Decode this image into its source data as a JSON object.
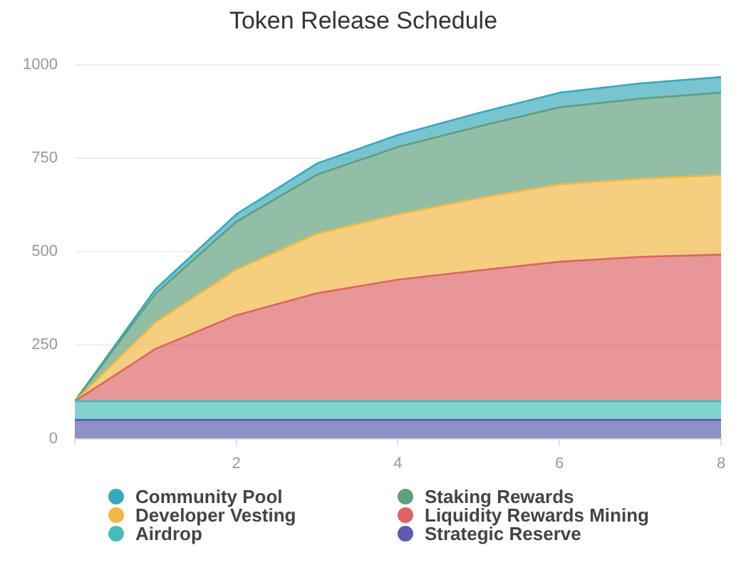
{
  "chart_data": {
    "type": "area",
    "title": "Token Release Schedule",
    "x": [
      0,
      1,
      2,
      3,
      4,
      5,
      6,
      7,
      8
    ],
    "xlim": [
      0,
      8
    ],
    "xticks": [
      {
        "value": 0,
        "label": null
      },
      2,
      4,
      6,
      8
    ],
    "ylim": [
      0,
      1000
    ],
    "yticks": [
      0,
      250,
      500,
      750,
      1000
    ],
    "stacked": true,
    "grid": "y",
    "legend": "bottom",
    "marker": "none",
    "series": [
      {
        "name": "Strategic Reserve",
        "color": "#5b5bb0",
        "values": [
          50,
          50,
          50,
          50,
          50,
          50,
          50,
          50,
          50
        ]
      },
      {
        "name": "Airdrop",
        "color": "#45bcb8",
        "values": [
          50,
          50,
          50,
          50,
          50,
          50,
          50,
          50,
          50
        ]
      },
      {
        "name": "Liquidity Rewards Mining",
        "color": "#dc6563",
        "values": [
          0,
          140,
          230,
          289,
          325,
          350,
          373,
          386,
          392
        ]
      },
      {
        "name": "Developer Vesting",
        "color": "#f0b843",
        "values": [
          0,
          71,
          122,
          159,
          175,
          193,
          207,
          209,
          213
        ]
      },
      {
        "name": "Staking Rewards",
        "color": "#5f9f7c",
        "values": [
          0,
          77,
          128,
          158,
          180,
          192,
          206,
          214,
          220
        ]
      },
      {
        "name": "Community Pool",
        "color": "#3aa8bb",
        "values": [
          0,
          12,
          20,
          30,
          32,
          36,
          39,
          41,
          42
        ]
      }
    ]
  }
}
